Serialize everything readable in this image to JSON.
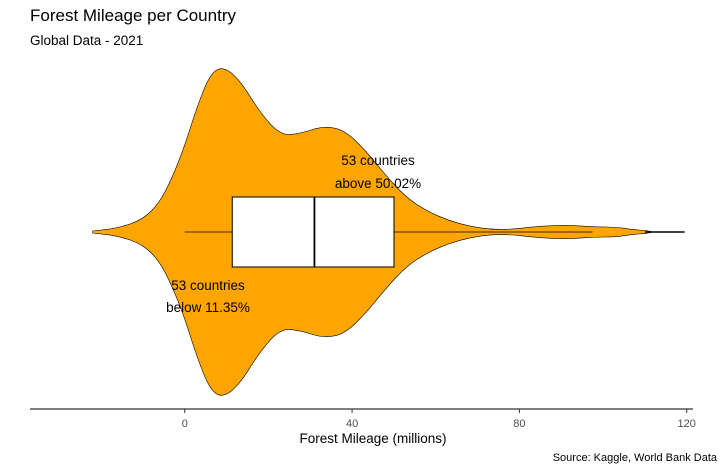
{
  "title": "Forest Mileage per Country",
  "subtitle": "Global Data - 2021",
  "source": "Source: Kaggle, World Bank Data",
  "chart_data": {
    "type": "violin",
    "xlabel": "Forest Mileage (millions)",
    "xlim": [
      -37,
      121.5
    ],
    "xticks": [
      0,
      40,
      80,
      120
    ],
    "grid": false,
    "fill_color": "#FFA500",
    "box": {
      "whisker_low": 0,
      "q1": 11.35,
      "median": 31,
      "q3": 50.02,
      "whisker_high": 97.5,
      "max": 119.5
    },
    "density": {
      "x": [
        -22,
        -16,
        -10,
        -6,
        -3,
        0,
        3,
        6,
        9,
        13,
        18,
        23,
        28,
        33,
        38,
        43,
        48,
        53,
        58,
        63,
        68,
        73,
        78,
        83,
        88,
        93,
        98,
        103,
        107,
        110,
        111,
        112
      ],
      "half_width": [
        0.5,
        1.9,
        6.2,
        14.8,
        27.2,
        43.2,
        63,
        78.7,
        82.9,
        76.5,
        59.7,
        48.1,
        49.5,
        52.9,
        51.2,
        41.3,
        28.4,
        17.1,
        10.4,
        5.8,
        2.9,
        1.3,
        1.3,
        2.5,
        3.3,
        3.3,
        2.5,
        2.5,
        1.2,
        0.8,
        0.4,
        0
      ]
    },
    "annotations": [
      {
        "lines": [
          "53 countries",
          "above 50.02%"
        ],
        "x": 50.02,
        "position": "above-box"
      },
      {
        "lines": [
          "53 countries",
          "below 11.35%"
        ],
        "x": 11.35,
        "position": "below-box"
      }
    ]
  }
}
